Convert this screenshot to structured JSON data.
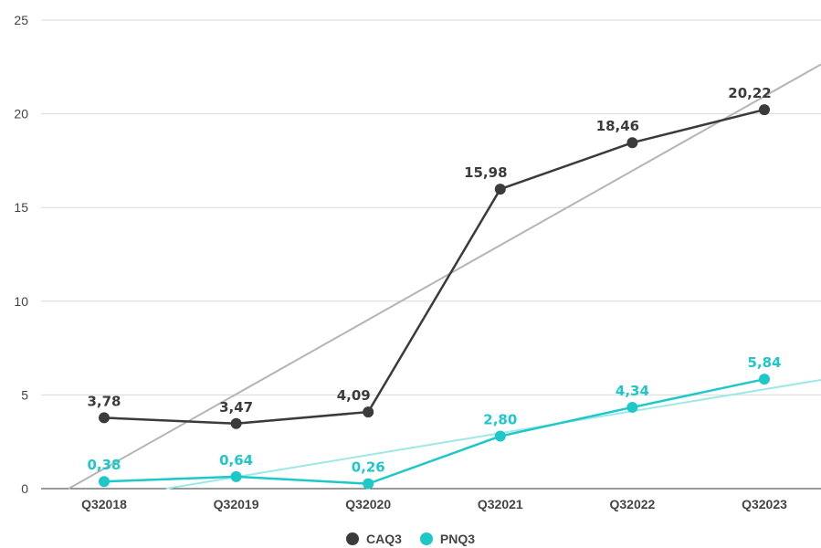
{
  "chart_data": {
    "type": "line",
    "categories": [
      "Q32018",
      "Q32019",
      "Q32020",
      "Q32021",
      "Q32022",
      "Q32023"
    ],
    "series": [
      {
        "name": "CAQ3",
        "values": [
          3.78,
          3.47,
          4.09,
          15.98,
          18.46,
          20.22
        ],
        "labels": [
          "3,78",
          "3,47",
          "4,09",
          "15,98",
          "18,46",
          "20,22"
        ],
        "color": "#3b3b3b",
        "trendline": true,
        "trend_color": "#b5b5b5"
      },
      {
        "name": "PNQ3",
        "values": [
          0.38,
          0.64,
          0.26,
          2.8,
          4.34,
          5.84
        ],
        "labels": [
          "0,38",
          "0,64",
          "0,26",
          "2,80",
          "4,34",
          "5,84"
        ],
        "color": "#1ec8c8",
        "trendline": true,
        "trend_color": "#9ee8e8"
      }
    ],
    "y_ticks": [
      "0",
      "5",
      "10",
      "15",
      "20",
      "25"
    ],
    "ylim": [
      0,
      25
    ],
    "grid": true,
    "legend_position": "bottom",
    "title": "",
    "xlabel": "",
    "ylabel": ""
  }
}
